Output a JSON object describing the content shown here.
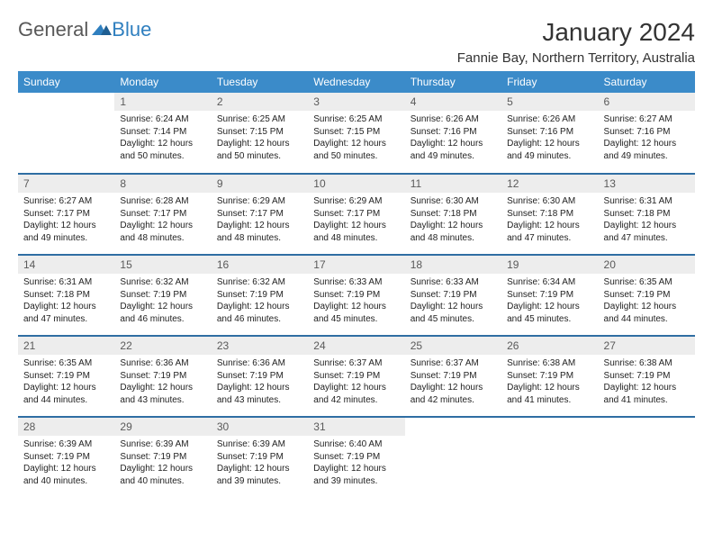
{
  "logo": {
    "text_a": "General",
    "text_b": "Blue"
  },
  "title": "January 2024",
  "location": "Fannie Bay, Northern Territory, Australia",
  "colors": {
    "header_bg": "#3b8bc9",
    "header_text": "#ffffff",
    "rule": "#2f6ea3",
    "daynum_bg": "#ededed",
    "daynum_text": "#5a5a5a",
    "body_text": "#222222",
    "logo_gray": "#585858",
    "logo_blue": "#2f7fbf"
  },
  "day_headers": [
    "Sunday",
    "Monday",
    "Tuesday",
    "Wednesday",
    "Thursday",
    "Friday",
    "Saturday"
  ],
  "weeks": [
    [
      null,
      {
        "n": "1",
        "sunrise": "6:24 AM",
        "sunset": "7:14 PM",
        "daylight": "12 hours and 50 minutes."
      },
      {
        "n": "2",
        "sunrise": "6:25 AM",
        "sunset": "7:15 PM",
        "daylight": "12 hours and 50 minutes."
      },
      {
        "n": "3",
        "sunrise": "6:25 AM",
        "sunset": "7:15 PM",
        "daylight": "12 hours and 50 minutes."
      },
      {
        "n": "4",
        "sunrise": "6:26 AM",
        "sunset": "7:16 PM",
        "daylight": "12 hours and 49 minutes."
      },
      {
        "n": "5",
        "sunrise": "6:26 AM",
        "sunset": "7:16 PM",
        "daylight": "12 hours and 49 minutes."
      },
      {
        "n": "6",
        "sunrise": "6:27 AM",
        "sunset": "7:16 PM",
        "daylight": "12 hours and 49 minutes."
      }
    ],
    [
      {
        "n": "7",
        "sunrise": "6:27 AM",
        "sunset": "7:17 PM",
        "daylight": "12 hours and 49 minutes."
      },
      {
        "n": "8",
        "sunrise": "6:28 AM",
        "sunset": "7:17 PM",
        "daylight": "12 hours and 48 minutes."
      },
      {
        "n": "9",
        "sunrise": "6:29 AM",
        "sunset": "7:17 PM",
        "daylight": "12 hours and 48 minutes."
      },
      {
        "n": "10",
        "sunrise": "6:29 AM",
        "sunset": "7:17 PM",
        "daylight": "12 hours and 48 minutes."
      },
      {
        "n": "11",
        "sunrise": "6:30 AM",
        "sunset": "7:18 PM",
        "daylight": "12 hours and 48 minutes."
      },
      {
        "n": "12",
        "sunrise": "6:30 AM",
        "sunset": "7:18 PM",
        "daylight": "12 hours and 47 minutes."
      },
      {
        "n": "13",
        "sunrise": "6:31 AM",
        "sunset": "7:18 PM",
        "daylight": "12 hours and 47 minutes."
      }
    ],
    [
      {
        "n": "14",
        "sunrise": "6:31 AM",
        "sunset": "7:18 PM",
        "daylight": "12 hours and 47 minutes."
      },
      {
        "n": "15",
        "sunrise": "6:32 AM",
        "sunset": "7:19 PM",
        "daylight": "12 hours and 46 minutes."
      },
      {
        "n": "16",
        "sunrise": "6:32 AM",
        "sunset": "7:19 PM",
        "daylight": "12 hours and 46 minutes."
      },
      {
        "n": "17",
        "sunrise": "6:33 AM",
        "sunset": "7:19 PM",
        "daylight": "12 hours and 45 minutes."
      },
      {
        "n": "18",
        "sunrise": "6:33 AM",
        "sunset": "7:19 PM",
        "daylight": "12 hours and 45 minutes."
      },
      {
        "n": "19",
        "sunrise": "6:34 AM",
        "sunset": "7:19 PM",
        "daylight": "12 hours and 45 minutes."
      },
      {
        "n": "20",
        "sunrise": "6:35 AM",
        "sunset": "7:19 PM",
        "daylight": "12 hours and 44 minutes."
      }
    ],
    [
      {
        "n": "21",
        "sunrise": "6:35 AM",
        "sunset": "7:19 PM",
        "daylight": "12 hours and 44 minutes."
      },
      {
        "n": "22",
        "sunrise": "6:36 AM",
        "sunset": "7:19 PM",
        "daylight": "12 hours and 43 minutes."
      },
      {
        "n": "23",
        "sunrise": "6:36 AM",
        "sunset": "7:19 PM",
        "daylight": "12 hours and 43 minutes."
      },
      {
        "n": "24",
        "sunrise": "6:37 AM",
        "sunset": "7:19 PM",
        "daylight": "12 hours and 42 minutes."
      },
      {
        "n": "25",
        "sunrise": "6:37 AM",
        "sunset": "7:19 PM",
        "daylight": "12 hours and 42 minutes."
      },
      {
        "n": "26",
        "sunrise": "6:38 AM",
        "sunset": "7:19 PM",
        "daylight": "12 hours and 41 minutes."
      },
      {
        "n": "27",
        "sunrise": "6:38 AM",
        "sunset": "7:19 PM",
        "daylight": "12 hours and 41 minutes."
      }
    ],
    [
      {
        "n": "28",
        "sunrise": "6:39 AM",
        "sunset": "7:19 PM",
        "daylight": "12 hours and 40 minutes."
      },
      {
        "n": "29",
        "sunrise": "6:39 AM",
        "sunset": "7:19 PM",
        "daylight": "12 hours and 40 minutes."
      },
      {
        "n": "30",
        "sunrise": "6:39 AM",
        "sunset": "7:19 PM",
        "daylight": "12 hours and 39 minutes."
      },
      {
        "n": "31",
        "sunrise": "6:40 AM",
        "sunset": "7:19 PM",
        "daylight": "12 hours and 39 minutes."
      },
      null,
      null,
      null
    ]
  ],
  "labels": {
    "sunrise": "Sunrise:",
    "sunset": "Sunset:",
    "daylight": "Daylight:"
  }
}
